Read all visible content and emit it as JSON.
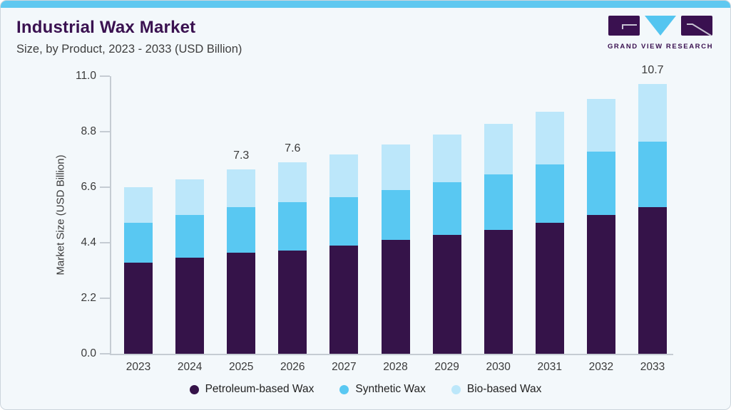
{
  "header": {
    "title": "Industrial Wax Market",
    "subtitle": "Size, by Product, 2023 - 2033 (USD Billion)"
  },
  "logo": {
    "name": "Grand View Research",
    "text": "GRAND VIEW RESEARCH"
  },
  "colors": {
    "title": "#3a1150",
    "top_strip": "#5fc8f0",
    "card_background": "#f3f8fb",
    "axis": "#c5ccd3",
    "petroleum": "#351349",
    "synthetic": "#59c8f2",
    "bio": "#bce7fa",
    "logo_purple": "#3a1150",
    "logo_blue": "#54c5f0"
  },
  "chart_data": {
    "type": "bar",
    "stacked": true,
    "title": "Industrial Wax Market",
    "subtitle": "Size, by Product, 2023 - 2033 (USD Billion)",
    "xlabel": "",
    "ylabel": "Market Size (USD Billion)",
    "ylim": [
      0,
      11
    ],
    "yticks": [
      "0.0",
      "2.2",
      "4.4",
      "6.6",
      "8.8",
      "11.0"
    ],
    "grid": false,
    "legend_position": "bottom",
    "categories": [
      "2023",
      "2024",
      "2025",
      "2026",
      "2027",
      "2028",
      "2029",
      "2030",
      "2031",
      "2032",
      "2033"
    ],
    "series": [
      {
        "key": "petroleum",
        "name": "Petroleum-based Wax",
        "color": "#351349",
        "values": [
          3.6,
          3.8,
          4.0,
          4.1,
          4.3,
          4.5,
          4.7,
          4.9,
          5.2,
          5.5,
          5.8
        ]
      },
      {
        "key": "synthetic",
        "name": "Synthetic Wax",
        "color": "#59c8f2",
        "values": [
          1.6,
          1.7,
          1.8,
          1.9,
          1.9,
          2.0,
          2.1,
          2.2,
          2.3,
          2.5,
          2.6
        ]
      },
      {
        "key": "bio",
        "name": "Bio-based Wax",
        "color": "#bce7fa",
        "values": [
          1.4,
          1.4,
          1.5,
          1.6,
          1.7,
          1.8,
          1.9,
          2.0,
          2.1,
          2.1,
          2.3
        ]
      }
    ],
    "totals": [
      6.6,
      6.9,
      7.3,
      7.6,
      7.9,
      8.3,
      8.7,
      9.1,
      9.6,
      10.1,
      10.7
    ],
    "data_labels": [
      null,
      null,
      "7.3",
      "7.6",
      null,
      null,
      null,
      null,
      null,
      null,
      "10.7"
    ]
  }
}
